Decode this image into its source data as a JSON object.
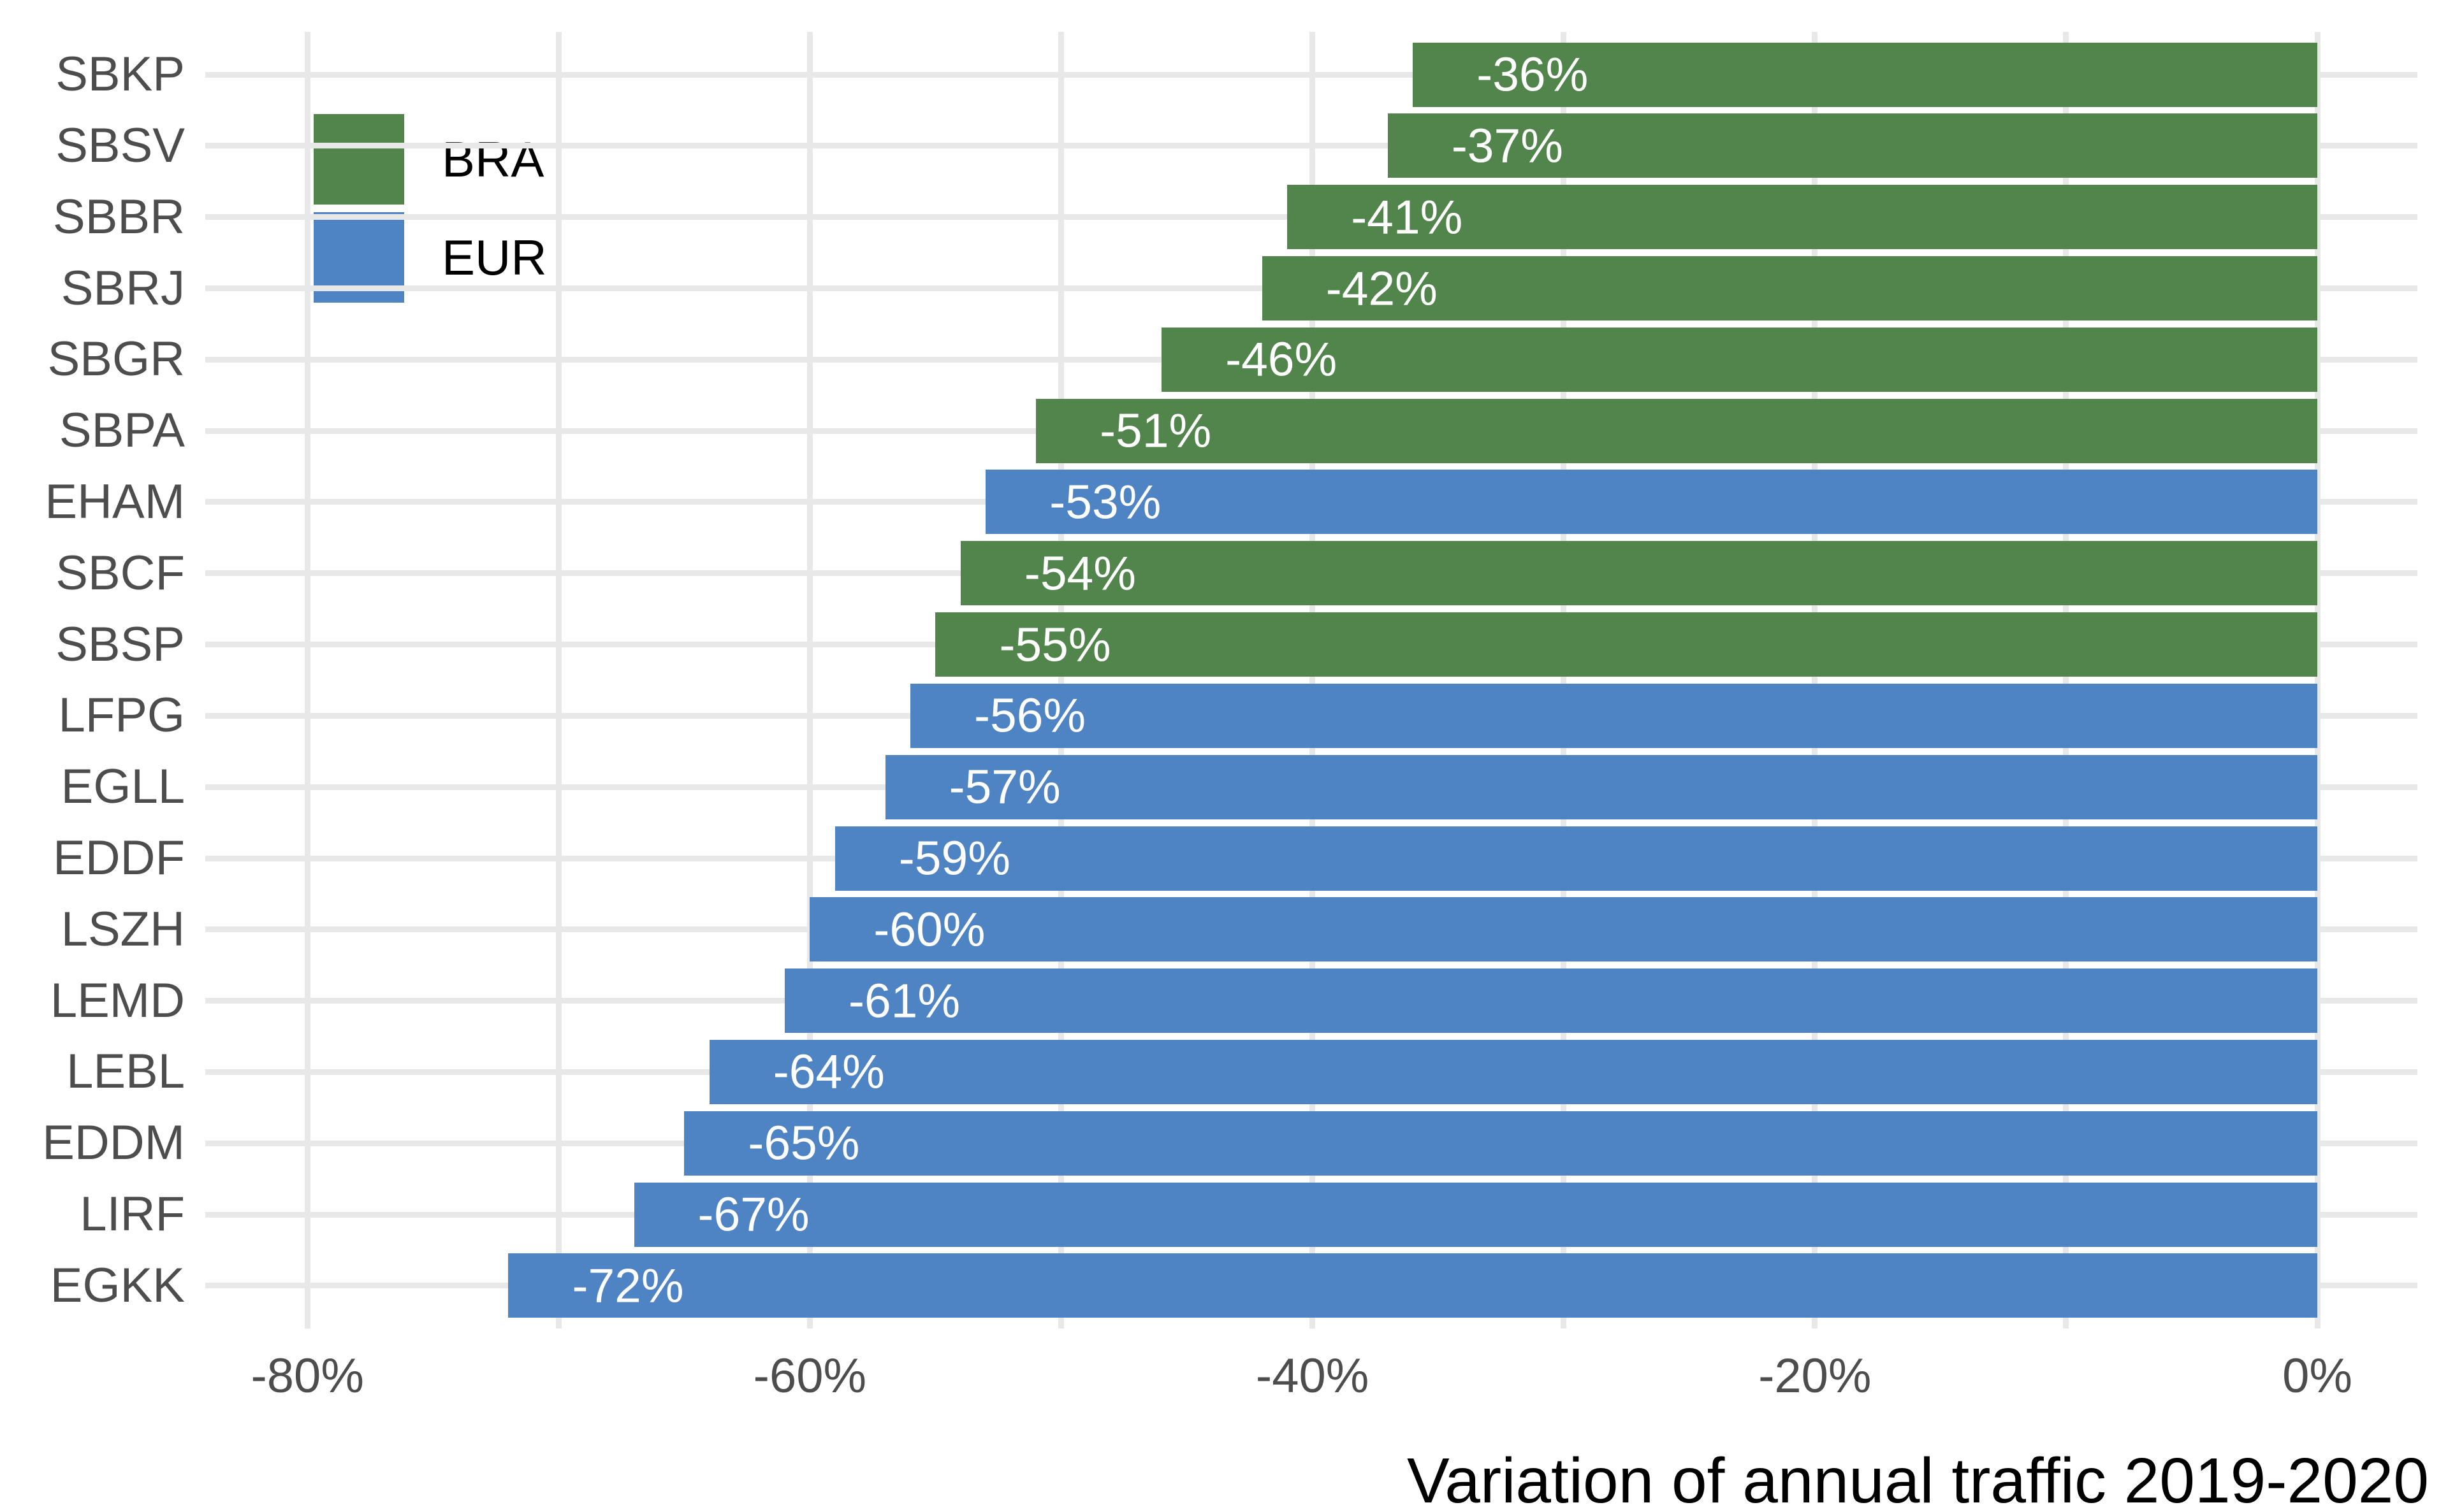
{
  "chart_data": {
    "type": "bar",
    "orientation": "horizontal",
    "title": "",
    "xlabel": "Variation of annual traffic 2019-2020",
    "ylabel": "",
    "unit": "%",
    "grid": true,
    "legend_position": "inside-top-left",
    "xlim": [
      -81,
      4
    ],
    "x_major_ticks": [
      -80,
      -60,
      -40,
      -20,
      0
    ],
    "x_major_tick_labels": [
      "-80%",
      "-60%",
      "-40%",
      "-20%",
      "0%"
    ],
    "x_minor_ticks": [
      -70,
      -50,
      -30,
      -10
    ],
    "groups": [
      {
        "name": "BRA",
        "color": "#52854C"
      },
      {
        "name": "EUR",
        "color": "#4E84C4"
      }
    ],
    "bars": [
      {
        "category": "SBKP",
        "value": -36,
        "label": "-36%",
        "group": "BRA"
      },
      {
        "category": "SBSV",
        "value": -37,
        "label": "-37%",
        "group": "BRA"
      },
      {
        "category": "SBBR",
        "value": -41,
        "label": "-41%",
        "group": "BRA"
      },
      {
        "category": "SBRJ",
        "value": -42,
        "label": "-42%",
        "group": "BRA"
      },
      {
        "category": "SBGR",
        "value": -46,
        "label": "-46%",
        "group": "BRA"
      },
      {
        "category": "SBPA",
        "value": -51,
        "label": "-51%",
        "group": "BRA"
      },
      {
        "category": "EHAM",
        "value": -53,
        "label": "-53%",
        "group": "EUR"
      },
      {
        "category": "SBCF",
        "value": -54,
        "label": "-54%",
        "group": "BRA"
      },
      {
        "category": "SBSP",
        "value": -55,
        "label": "-55%",
        "group": "BRA"
      },
      {
        "category": "LFPG",
        "value": -56,
        "label": "-56%",
        "group": "EUR"
      },
      {
        "category": "EGLL",
        "value": -57,
        "label": "-57%",
        "group": "EUR"
      },
      {
        "category": "EDDF",
        "value": -59,
        "label": "-59%",
        "group": "EUR"
      },
      {
        "category": "LSZH",
        "value": -60,
        "label": "-60%",
        "group": "EUR"
      },
      {
        "category": "LEMD",
        "value": -61,
        "label": "-61%",
        "group": "EUR"
      },
      {
        "category": "LEBL",
        "value": -64,
        "label": "-64%",
        "group": "EUR"
      },
      {
        "category": "EDDM",
        "value": -65,
        "label": "-65%",
        "group": "EUR"
      },
      {
        "category": "LIRF",
        "value": -67,
        "label": "-67%",
        "group": "EUR"
      },
      {
        "category": "EGKK",
        "value": -72,
        "label": "-72%",
        "group": "EUR"
      }
    ]
  },
  "colors": {
    "background": "#FFFFFF",
    "grid": "#E8E8E8",
    "axis_text": "#4D4D4D",
    "bar_label_text": "#FFFFFF",
    "title_text": "#000000",
    "bra_green": "#52854C",
    "eur_blue": "#4E84C4"
  }
}
